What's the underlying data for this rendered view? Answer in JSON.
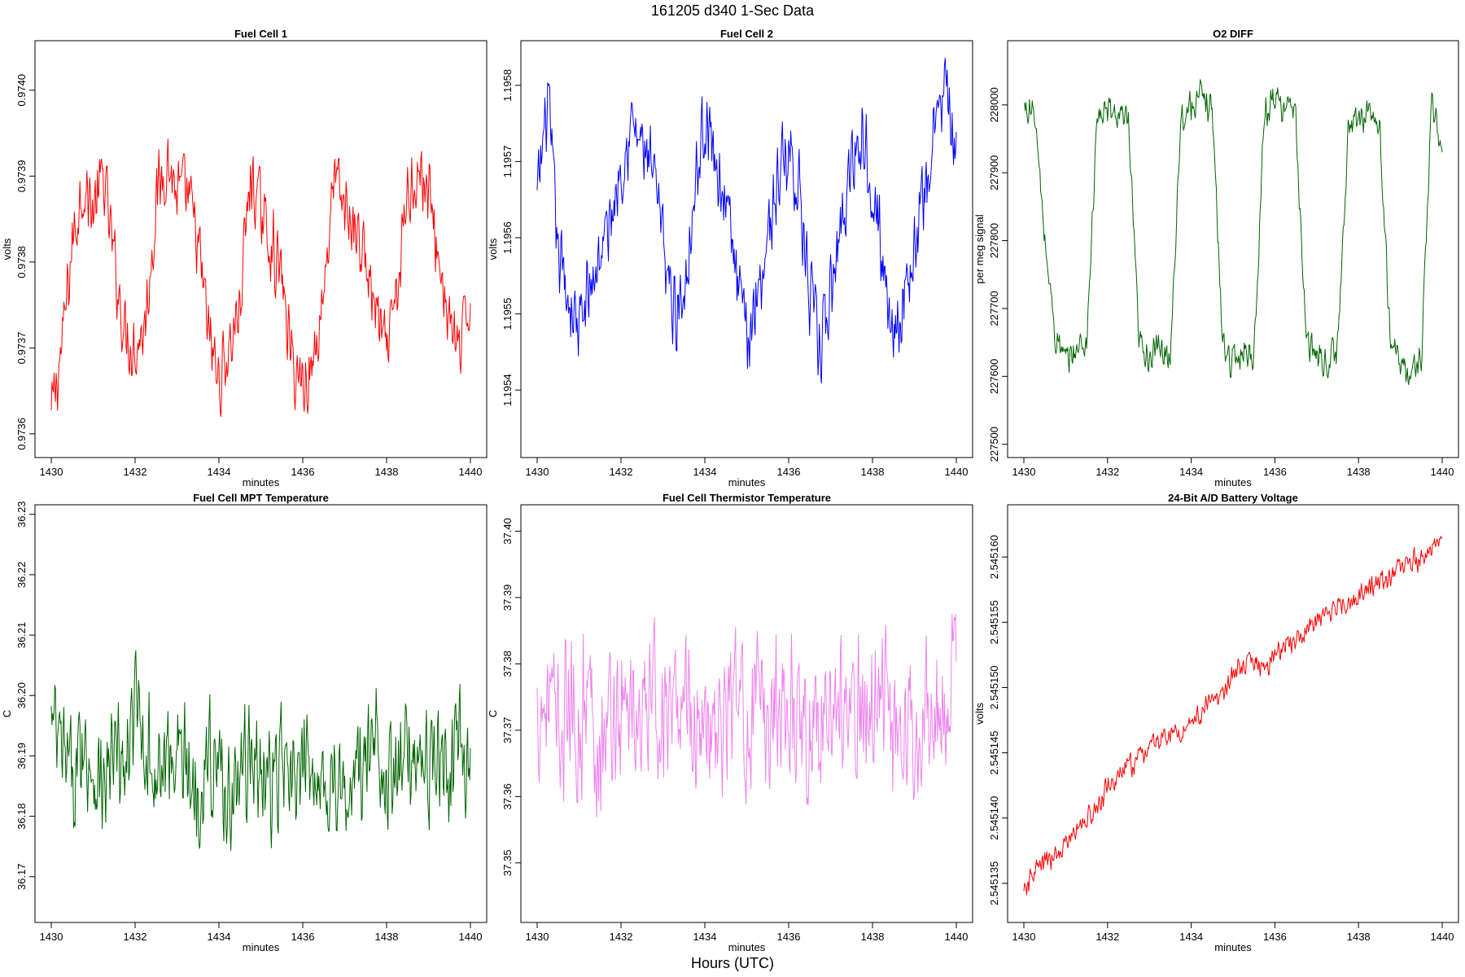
{
  "figure": {
    "title": "161205   d340   1-Sec Data",
    "footer": "Hours (UTC)"
  },
  "chart_data": [
    {
      "type": "line",
      "title": "Fuel Cell 1",
      "xlabel": "minutes",
      "ylabel": "volts",
      "color": "#ff0000",
      "xlim": [
        1430,
        1440
      ],
      "ylim": [
        0.97358,
        0.97405
      ],
      "xticks": [
        1430,
        1432,
        1434,
        1436,
        1438,
        1440
      ],
      "yticks": [
        0.9736,
        0.9737,
        0.9738,
        0.9739,
        0.974
      ],
      "ytick_labels": [
        "0.9736",
        "0.9737",
        "0.9738",
        "0.9739",
        "0.9740"
      ],
      "x": [
        1430.0,
        1430.25,
        1430.5,
        1430.75,
        1431.0,
        1431.25,
        1431.5,
        1431.75,
        1432.0,
        1432.25,
        1432.5,
        1432.75,
        1433.0,
        1433.25,
        1433.5,
        1433.75,
        1434.0,
        1434.25,
        1434.5,
        1434.75,
        1435.0,
        1435.25,
        1435.5,
        1435.75,
        1436.0,
        1436.25,
        1436.5,
        1436.75,
        1437.0,
        1437.25,
        1437.5,
        1437.75,
        1438.0,
        1438.25,
        1438.5,
        1438.75,
        1439.0,
        1439.25,
        1439.5,
        1439.75,
        1440.0
      ],
      "series": [
        {
          "values": [
            0.97362,
            0.9737,
            0.97382,
            0.97389,
            0.97386,
            0.9739,
            0.9738,
            0.97372,
            0.9737,
            0.97373,
            0.97387,
            0.97392,
            0.97388,
            0.97388,
            0.97382,
            0.97372,
            0.97366,
            0.9737,
            0.97375,
            0.9739,
            0.97386,
            0.97382,
            0.97378,
            0.97368,
            0.97366,
            0.97368,
            0.97377,
            0.9739,
            0.97386,
            0.97384,
            0.9738,
            0.97374,
            0.97369,
            0.97376,
            0.97388,
            0.97391,
            0.97388,
            0.9738,
            0.97373,
            0.97369,
            0.97376
          ]
        }
      ]
    },
    {
      "type": "line",
      "title": "Fuel Cell 2",
      "xlabel": "minutes",
      "ylabel": "volts",
      "color": "#0000ff",
      "xlim": [
        1430,
        1440
      ],
      "ylim": [
        1.19532,
        1.19585
      ],
      "xticks": [
        1430,
        1432,
        1434,
        1436,
        1438,
        1440
      ],
      "yticks": [
        1.1954,
        1.1955,
        1.1956,
        1.1957,
        1.1958
      ],
      "ytick_labels": [
        "1.1954",
        "1.1955",
        "1.1956",
        "1.1957",
        "1.1958"
      ],
      "x": [
        1430.0,
        1430.25,
        1430.5,
        1430.75,
        1431.0,
        1431.25,
        1431.5,
        1431.75,
        1432.0,
        1432.25,
        1432.5,
        1432.75,
        1433.0,
        1433.25,
        1433.5,
        1433.75,
        1434.0,
        1434.25,
        1434.5,
        1434.75,
        1435.0,
        1435.25,
        1435.5,
        1435.75,
        1436.0,
        1436.25,
        1436.5,
        1436.75,
        1437.0,
        1437.25,
        1437.5,
        1437.75,
        1438.0,
        1438.25,
        1438.5,
        1438.75,
        1439.0,
        1439.25,
        1439.5,
        1439.75,
        1440.0
      ],
      "series": [
        {
          "values": [
            1.19565,
            1.19578,
            1.19558,
            1.19552,
            1.19548,
            1.19553,
            1.19558,
            1.19562,
            1.1957,
            1.19575,
            1.19572,
            1.19568,
            1.1956,
            1.1955,
            1.19553,
            1.19566,
            1.19576,
            1.1957,
            1.19565,
            1.19555,
            1.19546,
            1.19553,
            1.1956,
            1.19568,
            1.19572,
            1.19566,
            1.19552,
            1.19545,
            1.19552,
            1.19562,
            1.1957,
            1.19574,
            1.19568,
            1.19556,
            1.19548,
            1.19552,
            1.19558,
            1.19566,
            1.19575,
            1.1958,
            1.19568
          ]
        }
      ]
    },
    {
      "type": "line",
      "title": "O2 DIFF",
      "xlabel": "minutes",
      "ylabel": "per meg signal",
      "color": "#006400",
      "xlim": [
        1430,
        1440
      ],
      "ylim": [
        227490,
        228085
      ],
      "xticks": [
        1430,
        1432,
        1434,
        1436,
        1438,
        1440
      ],
      "yticks": [
        227500,
        227600,
        227700,
        227800,
        227900,
        228000
      ],
      "ytick_labels": [
        "227500",
        "227600",
        "227700",
        "227800",
        "227900",
        "228000"
      ],
      "x": [
        1430.0,
        1430.25,
        1430.5,
        1430.75,
        1431.0,
        1431.25,
        1431.5,
        1431.75,
        1432.0,
        1432.25,
        1432.5,
        1432.75,
        1433.0,
        1433.25,
        1433.5,
        1433.75,
        1434.0,
        1434.25,
        1434.5,
        1434.75,
        1435.0,
        1435.25,
        1435.5,
        1435.75,
        1436.0,
        1436.25,
        1436.5,
        1436.75,
        1437.0,
        1437.25,
        1437.5,
        1437.75,
        1438.0,
        1438.25,
        1438.5,
        1438.75,
        1439.0,
        1439.25,
        1439.5,
        1439.75,
        1440.0
      ],
      "series": [
        {
          "values": [
            227995,
            227990,
            227800,
            227660,
            227620,
            227640,
            227650,
            227980,
            227990,
            227985,
            227970,
            227650,
            227630,
            227640,
            227630,
            227980,
            228000,
            228010,
            228000,
            227650,
            227620,
            227640,
            227630,
            227990,
            228010,
            228000,
            227980,
            227650,
            227630,
            227620,
            227640,
            227960,
            227980,
            227990,
            227970,
            227660,
            227620,
            227600,
            227630,
            228000,
            227930
          ]
        }
      ]
    },
    {
      "type": "line",
      "title": "Fuel Cell MPT Temperature",
      "xlabel": "minutes",
      "ylabel": "C",
      "color": "#006400",
      "xlim": [
        1430,
        1440
      ],
      "ylim": [
        36.1635,
        36.2305
      ],
      "xticks": [
        1430,
        1432,
        1434,
        1436,
        1438,
        1440
      ],
      "yticks": [
        36.17,
        36.18,
        36.19,
        36.2,
        36.21,
        36.22,
        36.23
      ],
      "ytick_labels": [
        "36.17",
        "36.18",
        "36.19",
        "36.20",
        "36.21",
        "36.22",
        "36.23"
      ],
      "x": [
        1430.0,
        1430.25,
        1430.5,
        1430.75,
        1431.0,
        1431.25,
        1431.5,
        1431.75,
        1432.0,
        1432.25,
        1432.5,
        1432.75,
        1433.0,
        1433.25,
        1433.5,
        1433.75,
        1434.0,
        1434.25,
        1434.5,
        1434.75,
        1435.0,
        1435.25,
        1435.5,
        1435.75,
        1436.0,
        1436.25,
        1436.5,
        1436.75,
        1437.0,
        1437.25,
        1437.5,
        1437.75,
        1438.0,
        1438.25,
        1438.5,
        1438.75,
        1439.0,
        1439.25,
        1439.5,
        1439.75,
        1440.0
      ],
      "series": [
        {
          "values": [
            36.195,
            36.19,
            36.186,
            36.192,
            36.188,
            36.184,
            36.19,
            36.187,
            36.198,
            36.192,
            36.186,
            36.189,
            36.193,
            36.187,
            36.184,
            36.19,
            36.188,
            36.183,
            36.186,
            36.191,
            36.187,
            36.185,
            36.189,
            36.184,
            36.186,
            36.19,
            36.184,
            36.187,
            36.182,
            36.186,
            36.189,
            36.193,
            36.188,
            36.186,
            36.19,
            36.192,
            36.188,
            36.19,
            36.186,
            36.191,
            36.188
          ]
        }
      ]
    },
    {
      "type": "line",
      "title": "Fuel Cell Thermistor Temperature",
      "xlabel": "minutes",
      "ylabel": "C",
      "color": "#ee82ee",
      "xlim": [
        1430,
        1440
      ],
      "ylim": [
        37.342,
        37.403
      ],
      "xticks": [
        1430,
        1432,
        1434,
        1436,
        1438,
        1440
      ],
      "yticks": [
        37.35,
        37.36,
        37.37,
        37.38,
        37.39,
        37.4
      ],
      "ytick_labels": [
        "37.35",
        "37.36",
        "37.37",
        "37.38",
        "37.39",
        "37.40"
      ],
      "x": [
        1430.0,
        1430.25,
        1430.5,
        1430.75,
        1431.0,
        1431.25,
        1431.5,
        1431.75,
        1432.0,
        1432.25,
        1432.5,
        1432.75,
        1433.0,
        1433.25,
        1433.5,
        1433.75,
        1434.0,
        1434.25,
        1434.5,
        1434.75,
        1435.0,
        1435.25,
        1435.5,
        1435.75,
        1436.0,
        1436.25,
        1436.5,
        1436.75,
        1437.0,
        1437.25,
        1437.5,
        1437.75,
        1438.0,
        1438.25,
        1438.5,
        1438.75,
        1439.0,
        1439.25,
        1439.5,
        1439.75,
        1440.0
      ],
      "series": [
        {
          "values": [
            37.372,
            37.376,
            37.368,
            37.374,
            37.37,
            37.377,
            37.366,
            37.373,
            37.371,
            37.375,
            37.368,
            37.376,
            37.372,
            37.369,
            37.378,
            37.371,
            37.374,
            37.367,
            37.372,
            37.376,
            37.37,
            37.374,
            37.369,
            37.377,
            37.372,
            37.375,
            37.368,
            37.373,
            37.371,
            37.376,
            37.369,
            37.374,
            37.372,
            37.377,
            37.37,
            37.373,
            37.371,
            37.375,
            37.369,
            37.374,
            37.378
          ]
        }
      ]
    },
    {
      "type": "line",
      "title": "24-Bit A/D Battery Voltage",
      "xlabel": "minutes",
      "ylabel": "volts",
      "color": "#ff0000",
      "xlim": [
        1430,
        1440
      ],
      "ylim": [
        2.5451325,
        2.5451635
      ],
      "xticks": [
        1430,
        1432,
        1434,
        1436,
        1438,
        1440
      ],
      "yticks": [
        2.545135,
        2.54514,
        2.545145,
        2.54515,
        2.545155,
        2.54516
      ],
      "ytick_labels": [
        "2.545135",
        "2.545140",
        "2.545145",
        "2.545150",
        "2.545155",
        "2.545160"
      ],
      "x": [
        1430.0,
        1430.25,
        1430.5,
        1430.75,
        1431.0,
        1431.25,
        1431.5,
        1431.75,
        1432.0,
        1432.25,
        1432.5,
        1432.75,
        1433.0,
        1433.25,
        1433.5,
        1433.75,
        1434.0,
        1434.25,
        1434.5,
        1434.75,
        1435.0,
        1435.25,
        1435.5,
        1435.75,
        1436.0,
        1436.25,
        1436.5,
        1436.75,
        1437.0,
        1437.25,
        1437.5,
        1437.75,
        1438.0,
        1438.25,
        1438.5,
        1438.75,
        1439.0,
        1439.25,
        1439.5,
        1439.75,
        1440.0
      ],
      "series": [
        {
          "values": [
            2.545134,
            2.545136,
            2.5451365,
            2.545137,
            2.545138,
            2.545139,
            2.54514,
            2.5451405,
            2.5451425,
            2.545143,
            2.545144,
            2.5451445,
            2.5451455,
            2.545146,
            2.5451465,
            2.5451465,
            2.5451475,
            2.545148,
            2.545149,
            2.5451495,
            2.545151,
            2.5451515,
            2.545152,
            2.5451515,
            2.5451525,
            2.5451535,
            2.5451535,
            2.5451545,
            2.545155,
            2.5451555,
            2.5451565,
            2.5451565,
            2.545157,
            2.5451575,
            2.545158,
            2.5451585,
            2.545159,
            2.5451595,
            2.54516,
            2.5451605,
            2.545161
          ]
        }
      ]
    }
  ]
}
